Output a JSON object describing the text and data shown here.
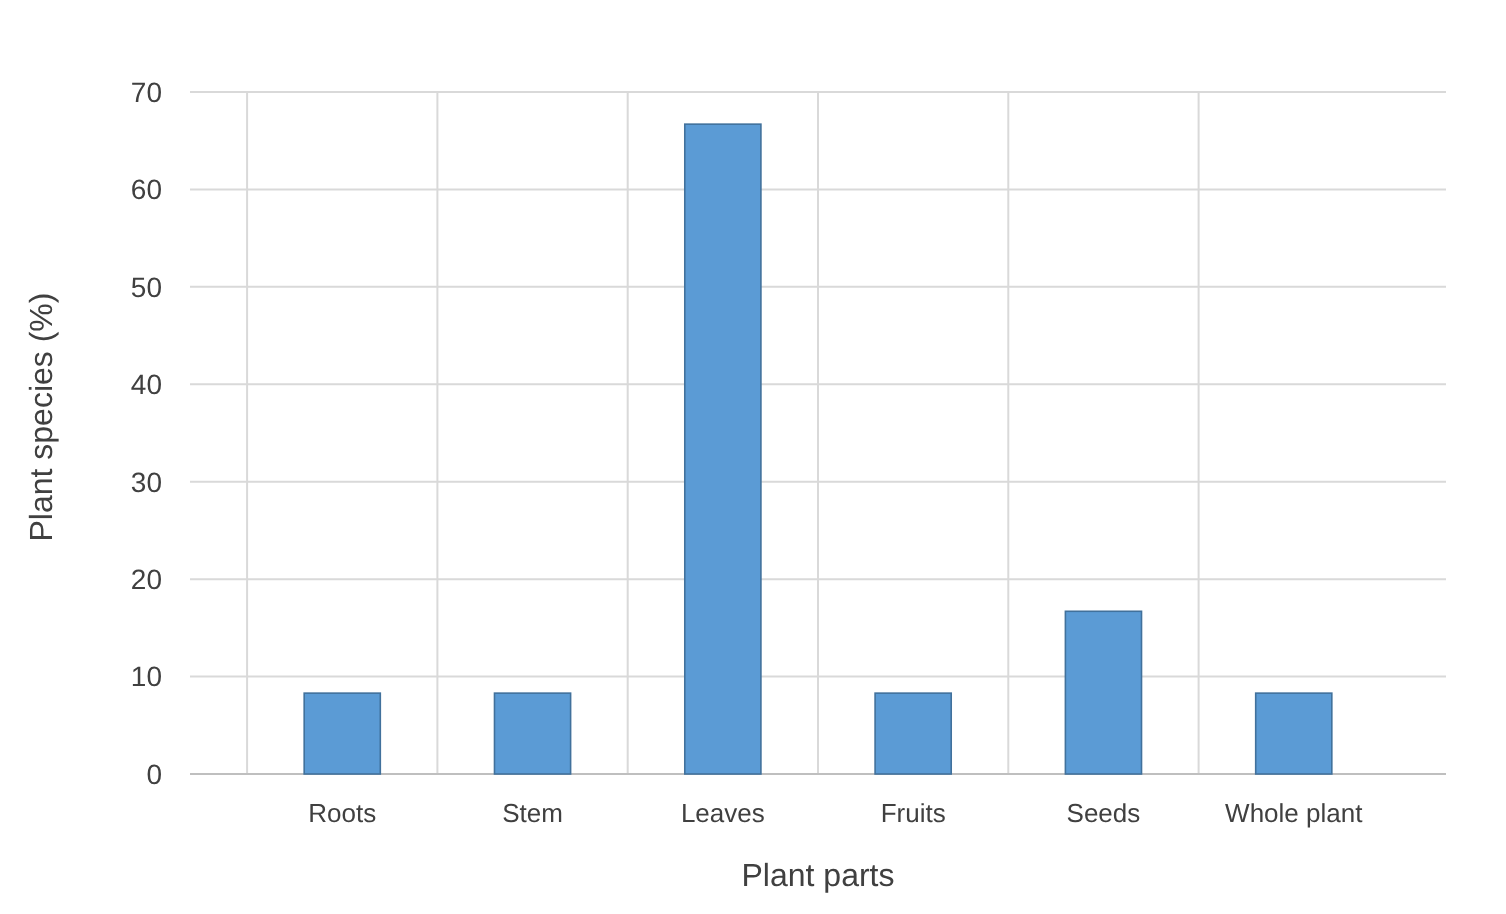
{
  "chart_data": {
    "type": "bar",
    "xlabel": "Plant parts",
    "ylabel": "Plant species (%)",
    "categories": [
      "Roots",
      "Stem",
      "Leaves",
      "Fruits",
      "Seeds",
      "Whole plant"
    ],
    "values": [
      8.3,
      8.3,
      66.7,
      8.3,
      16.7,
      8.3
    ],
    "color": "#5b9bd5",
    "ylim": [
      0,
      70
    ],
    "yticks": [
      0,
      10,
      20,
      30,
      40,
      50,
      60,
      70
    ],
    "grid": true
  }
}
